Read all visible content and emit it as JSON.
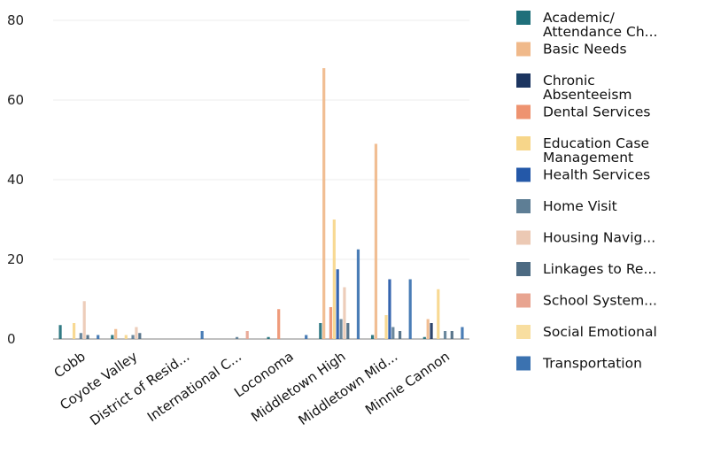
{
  "chart_data": {
    "type": "bar",
    "ylim": [
      0,
      80
    ],
    "yticks": [
      "0",
      "20",
      "40",
      "60",
      "80"
    ],
    "grid": true,
    "legend_position": "right",
    "categories": [
      "Cobb",
      "Coyote Valley",
      "District of Resid...",
      "International C...",
      "Loconoma",
      "Middletown High",
      "Middletown Mid...",
      "Minnie Cannon"
    ],
    "series": [
      {
        "name": "Academic/ Attendance Ch...",
        "color": "#1f6f7a",
        "values": [
          3.5,
          1,
          0,
          0,
          0.5,
          4,
          1,
          0.5
        ]
      },
      {
        "name": "Basic Needs",
        "color": "#f0b98a",
        "values": [
          0,
          2.5,
          0,
          0,
          0,
          68,
          49,
          5
        ]
      },
      {
        "name": "Chronic Absenteeism",
        "color": "#1c3560",
        "values": [
          0,
          0,
          0,
          0,
          0,
          0,
          0,
          4
        ]
      },
      {
        "name": "Dental Services",
        "color": "#ee9370",
        "values": [
          0,
          0,
          0,
          0,
          7.5,
          8,
          0,
          0
        ]
      },
      {
        "name": "Education Case Management",
        "color": "#f7d68a",
        "values": [
          4,
          1,
          0,
          0,
          0,
          30,
          6,
          12.5
        ]
      },
      {
        "name": "Health Services",
        "color": "#2458a8",
        "values": [
          0,
          0,
          0,
          0,
          0,
          17.5,
          15,
          0
        ]
      },
      {
        "name": "Home Visit",
        "color": "#5e7e95",
        "values": [
          1.5,
          1,
          0,
          0.5,
          0,
          5,
          3,
          2
        ]
      },
      {
        "name": "Housing Navig...",
        "color": "#ecc9b4",
        "values": [
          9.5,
          3,
          0,
          0,
          0,
          13,
          0,
          0
        ]
      },
      {
        "name": "Linkages to Re...",
        "color": "#4c6a82",
        "values": [
          1,
          1.5,
          0,
          0,
          0,
          4,
          2,
          2
        ]
      },
      {
        "name": "School System...",
        "color": "#e8a490",
        "values": [
          0,
          0,
          0,
          2,
          0,
          0,
          0,
          0
        ]
      },
      {
        "name": "Social Emotional",
        "color": "#f8dea0",
        "values": [
          0,
          0,
          0,
          0,
          0,
          0,
          0,
          0
        ]
      },
      {
        "name": "Transportation",
        "color": "#3b72b0",
        "values": [
          1,
          0,
          2,
          0,
          1,
          22.5,
          15,
          3
        ]
      }
    ]
  }
}
